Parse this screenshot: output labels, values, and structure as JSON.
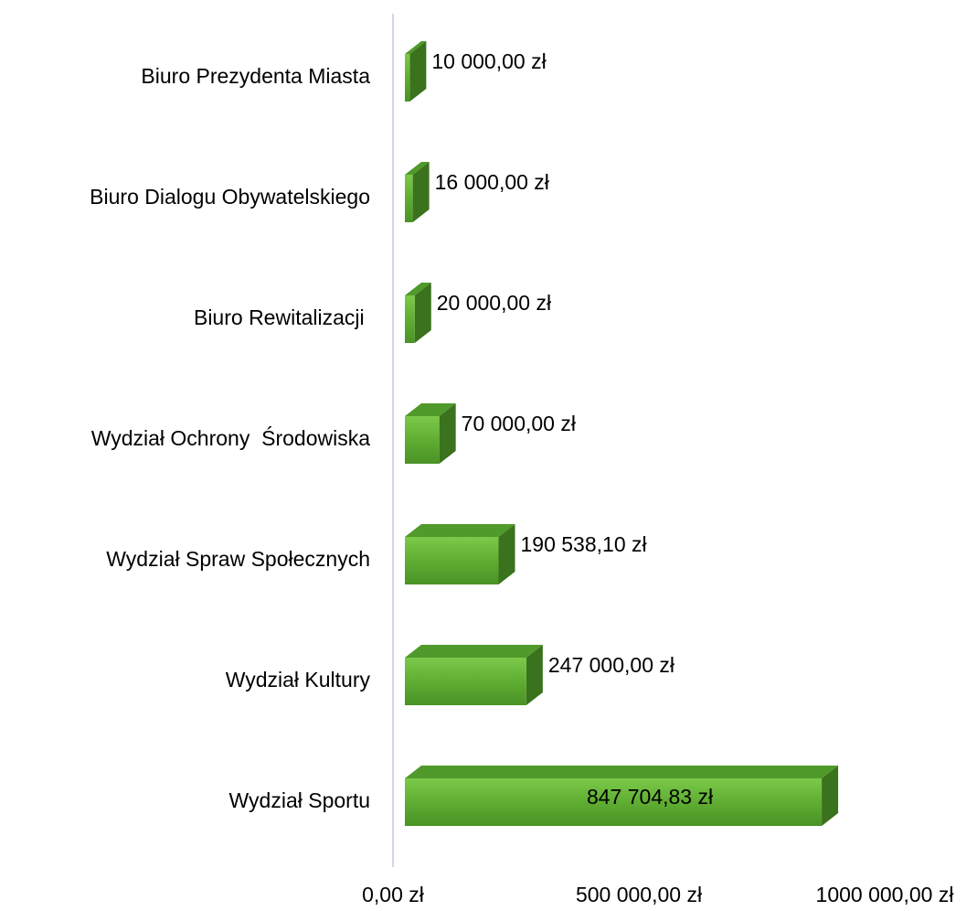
{
  "chart_data": {
    "type": "bar3d_horizontal",
    "categories": [
      "Biuro Prezydenta Miasta",
      "Biuro Dialogu Obywatelskiego",
      "Biuro Rewitalizacji ",
      "Wydział Ochrony  Środowiska",
      "Wydział Spraw Społecznych",
      "Wydział Kultury",
      "Wydział Sportu"
    ],
    "values": [
      10000,
      16000,
      20000,
      70000,
      190538.1,
      247000,
      847704.83
    ],
    "value_labels": [
      "10 000,00 zł",
      "16 000,00 zł",
      "20 000,00 zł",
      "70 000,00 zł",
      "190 538,10 zł",
      "247 000,00 zł",
      "847 704,83 zł"
    ],
    "color": "#5fae32",
    "xlim": [
      0,
      1000000
    ],
    "xticks": [
      {
        "value": 0,
        "label": "0,00 zł"
      },
      {
        "value": 500000,
        "label": "500 000,00 zł"
      },
      {
        "value": 1000000,
        "label": "1000 000,00 zł"
      }
    ]
  }
}
